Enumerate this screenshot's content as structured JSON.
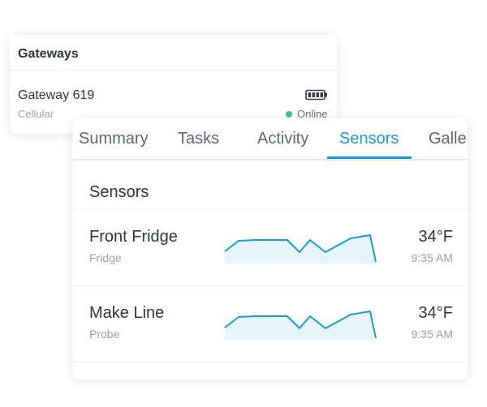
{
  "gateways": {
    "title": "Gateways",
    "item": {
      "name": "Gateway 619",
      "type": "Cellular",
      "status": "Online",
      "status_color": "#35c48b",
      "battery_icon": "battery-full-icon"
    }
  },
  "tabs": [
    {
      "label": "Summary"
    },
    {
      "label": "Tasks"
    },
    {
      "label": "Activity"
    },
    {
      "label": "Sensors",
      "active": true
    },
    {
      "label": "Galle"
    }
  ],
  "accent_color": "#1a9ad6",
  "sensors": {
    "title": "Sensors",
    "items": [
      {
        "name": "Front Fridge",
        "type": "Fridge",
        "temp": "34°F",
        "time": "9:35 AM"
      },
      {
        "name": "Make Line",
        "type": "Probe",
        "temp": "34°F",
        "time": "9:35 AM"
      }
    ]
  }
}
